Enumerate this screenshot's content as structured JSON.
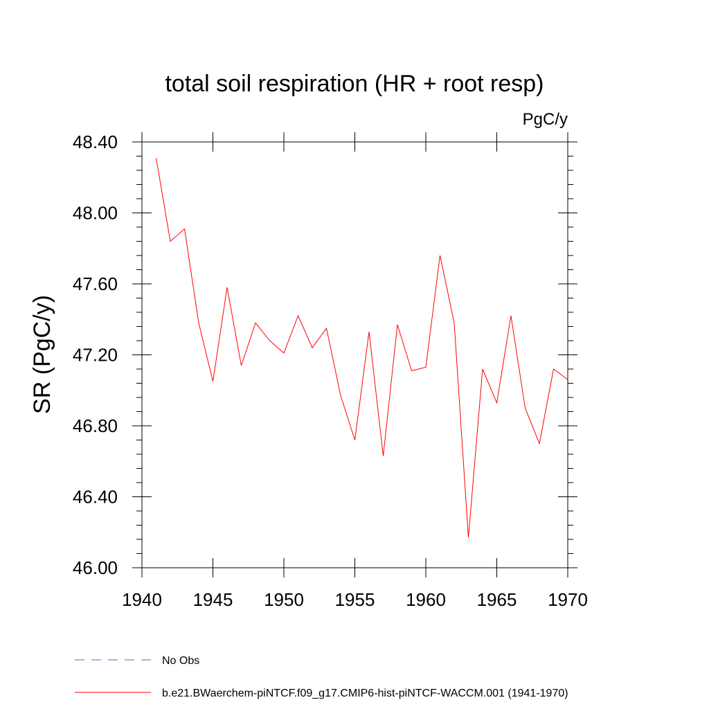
{
  "chart_data": {
    "type": "line",
    "title": "total soil respiration (HR + root resp)",
    "units_label": "PgC/y",
    "xlabel": "",
    "ylabel": "SR  (PgC/y)",
    "xlim": [
      1940,
      1970
    ],
    "ylim": [
      46.0,
      48.4
    ],
    "x_ticks": [
      1940,
      1945,
      1950,
      1955,
      1960,
      1965,
      1970
    ],
    "x_tick_labels": [
      "1940",
      "1945",
      "1950",
      "1955",
      "1960",
      "1965",
      "1970"
    ],
    "y_ticks": [
      46.0,
      46.4,
      46.8,
      47.2,
      47.6,
      48.0,
      48.4
    ],
    "y_tick_labels": [
      "46.00",
      "46.40",
      "46.80",
      "47.20",
      "47.60",
      "48.00",
      "48.40"
    ],
    "grid": false,
    "legend_position": "bottom-left",
    "series": [
      {
        "name": "b.e21.BWaerchem-piNTCF.f09_g17.CMIP6-hist-piNTCF-WACCM.001 (1941-1970)",
        "color": "#ff0000",
        "dash": "solid",
        "x": [
          1941,
          1942,
          1943,
          1944,
          1945,
          1946,
          1947,
          1948,
          1949,
          1950,
          1951,
          1952,
          1953,
          1954,
          1955,
          1956,
          1957,
          1958,
          1959,
          1960,
          1961,
          1962,
          1963,
          1964,
          1965,
          1966,
          1967,
          1968,
          1969,
          1970
        ],
        "y": [
          48.31,
          47.84,
          47.91,
          47.38,
          47.05,
          47.58,
          47.14,
          47.38,
          47.28,
          47.21,
          47.42,
          47.24,
          47.35,
          46.97,
          46.72,
          47.33,
          46.63,
          47.37,
          47.11,
          47.13,
          47.76,
          47.38,
          46.17,
          47.12,
          46.93,
          47.42,
          46.9,
          46.7,
          47.12,
          47.06
        ]
      },
      {
        "name": "No Obs",
        "color": "#6a5acd",
        "dash": "dashed",
        "x": [],
        "y": []
      }
    ]
  }
}
